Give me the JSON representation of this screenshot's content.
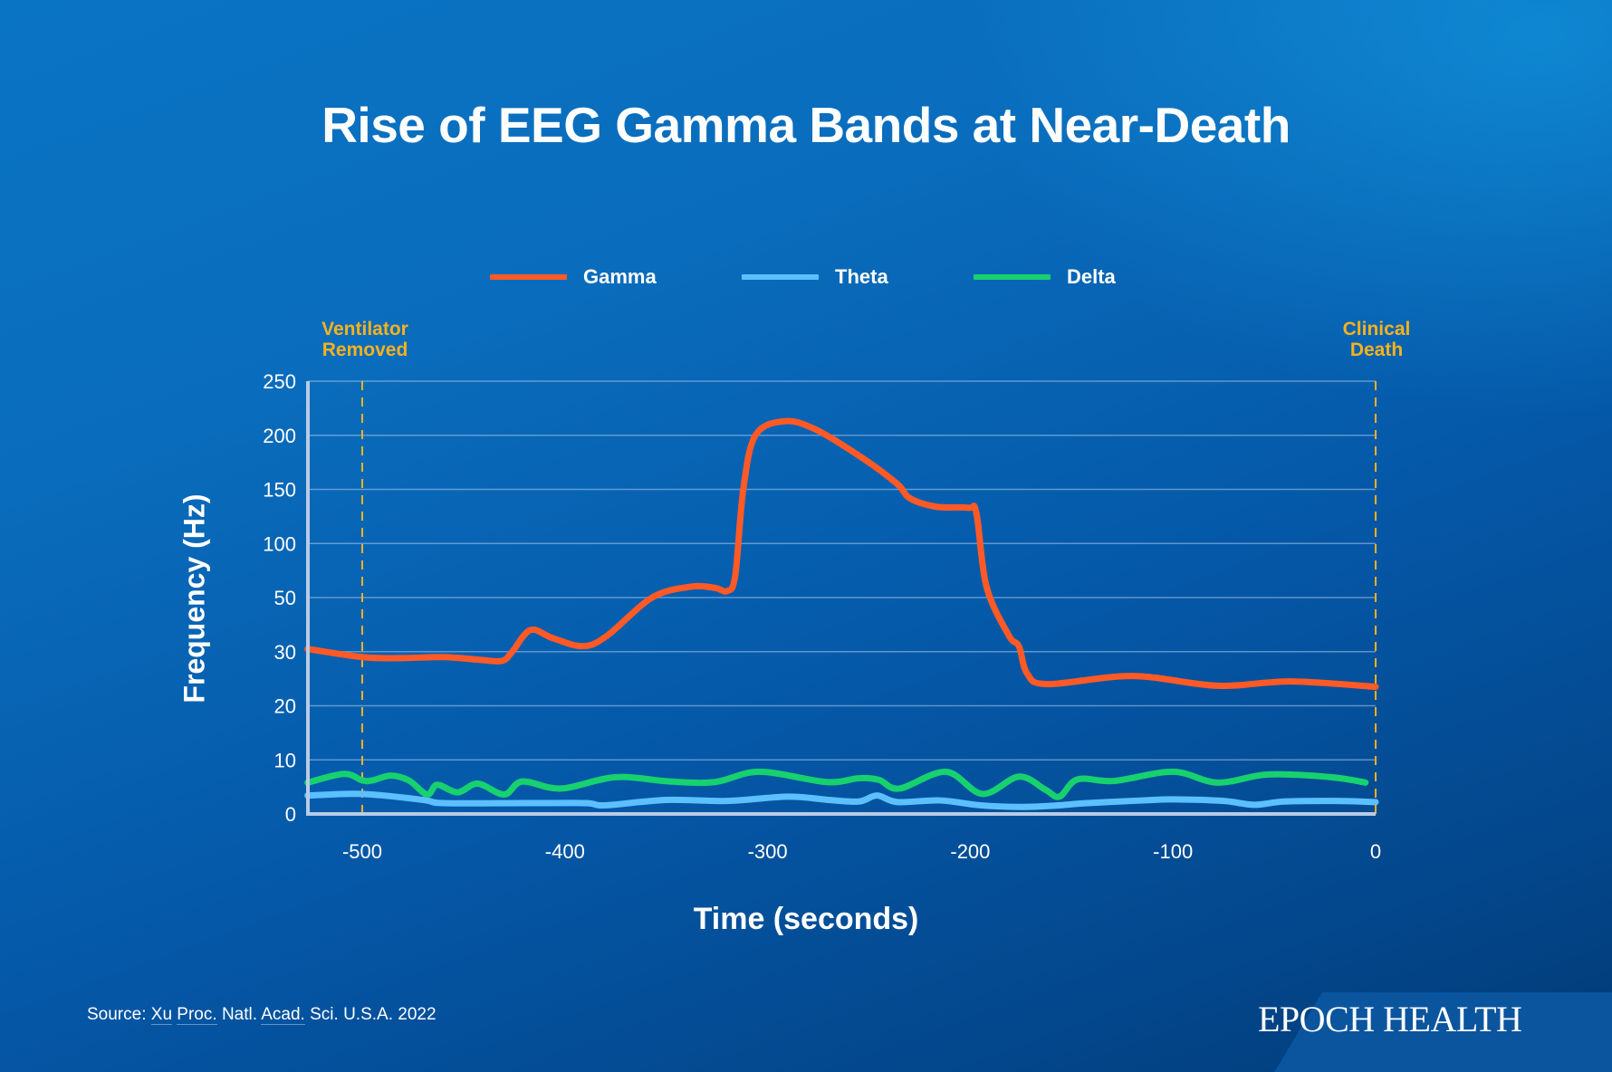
{
  "title": "Rise of EEG Gamma Bands at Near-Death",
  "legend": [
    {
      "label": "Gamma",
      "color": "#ff5a26"
    },
    {
      "label": "Theta",
      "color": "#5cc0ff"
    },
    {
      "label": "Delta",
      "color": "#17d16f"
    }
  ],
  "annotations": {
    "ventilator": {
      "line1": "Ventilator",
      "line2": "Removed",
      "x": -500
    },
    "death": {
      "line1": "Clinical",
      "line2": "Death",
      "x": 0
    },
    "color": "#f7b21e"
  },
  "source": {
    "prefix": "Source: ",
    "parts": [
      "Xu",
      "Proc.",
      "Natl.",
      "Acad.",
      "Sci. U.S.A. 2022"
    ]
  },
  "brand": "EPOCH HEALTH",
  "chart_data": {
    "type": "line",
    "title": "Rise of EEG Gamma Bands at Near-Death",
    "xlabel": "Time (seconds)",
    "ylabel": "Frequency (Hz)",
    "xlim": [
      -527,
      0
    ],
    "xticks": [
      -500,
      -400,
      -300,
      -200,
      -100,
      0
    ],
    "yticks": [
      0,
      10,
      20,
      30,
      50,
      100,
      150,
      200,
      250
    ],
    "y_scale": "piecewise (tick labels equally spaced)",
    "grid": true,
    "legend_position": "top-center",
    "vlines": [
      {
        "x": -500,
        "label": "Ventilator Removed"
      },
      {
        "x": 0,
        "label": "Clinical Death"
      }
    ],
    "series": [
      {
        "name": "Gamma",
        "color": "#ff5a26",
        "points": [
          [
            -527,
            31
          ],
          [
            -500,
            29
          ],
          [
            -482,
            28.8
          ],
          [
            -460,
            29
          ],
          [
            -442,
            28.5
          ],
          [
            -431,
            28.3
          ],
          [
            -426,
            30
          ],
          [
            -417,
            38
          ],
          [
            -406,
            35
          ],
          [
            -391,
            32
          ],
          [
            -379,
            36
          ],
          [
            -357,
            50
          ],
          [
            -338,
            60
          ],
          [
            -326,
            59
          ],
          [
            -320,
            56
          ],
          [
            -316,
            70
          ],
          [
            -312,
            150
          ],
          [
            -306,
            200
          ],
          [
            -292,
            213
          ],
          [
            -277,
            206
          ],
          [
            -254,
            180
          ],
          [
            -236,
            155
          ],
          [
            -230,
            142
          ],
          [
            -217,
            134
          ],
          [
            -201,
            133
          ],
          [
            -197,
            128
          ],
          [
            -192,
            60
          ],
          [
            -181,
            36
          ],
          [
            -176,
            32
          ],
          [
            -172,
            26
          ],
          [
            -162,
            24
          ],
          [
            -120,
            25.5
          ],
          [
            -78,
            23.7
          ],
          [
            -42,
            24.5
          ],
          [
            0,
            23.5
          ]
        ]
      },
      {
        "name": "Theta",
        "color": "#5cc0ff",
        "points": [
          [
            -527,
            3.4
          ],
          [
            -500,
            3.7
          ],
          [
            -470,
            2.6
          ],
          [
            -460,
            2.0
          ],
          [
            -420,
            2.0
          ],
          [
            -390,
            2.0
          ],
          [
            -380,
            1.6
          ],
          [
            -350,
            2.6
          ],
          [
            -320,
            2.4
          ],
          [
            -290,
            3.2
          ],
          [
            -270,
            2.6
          ],
          [
            -255,
            2.3
          ],
          [
            -246,
            3.4
          ],
          [
            -236,
            2.2
          ],
          [
            -215,
            2.5
          ],
          [
            -195,
            1.6
          ],
          [
            -175,
            1.3
          ],
          [
            -160,
            1.5
          ],
          [
            -142,
            2.0
          ],
          [
            -115,
            2.5
          ],
          [
            -100,
            2.7
          ],
          [
            -75,
            2.4
          ],
          [
            -60,
            1.7
          ],
          [
            -45,
            2.3
          ],
          [
            -20,
            2.4
          ],
          [
            0,
            2.2
          ]
        ]
      },
      {
        "name": "Delta",
        "color": "#17d16f",
        "points": [
          [
            -527,
            5.8
          ],
          [
            -509,
            7.4
          ],
          [
            -500,
            6.2
          ],
          [
            -495,
            6.2
          ],
          [
            -486,
            7.1
          ],
          [
            -477,
            6.2
          ],
          [
            -468,
            3.6
          ],
          [
            -463,
            5.4
          ],
          [
            -453,
            4.0
          ],
          [
            -443,
            5.6
          ],
          [
            -430,
            3.6
          ],
          [
            -421,
            6.0
          ],
          [
            -402,
            4.7
          ],
          [
            -375,
            6.8
          ],
          [
            -348,
            6.0
          ],
          [
            -326,
            5.9
          ],
          [
            -304,
            7.8
          ],
          [
            -271,
            5.9
          ],
          [
            -255,
            6.6
          ],
          [
            -245,
            6.3
          ],
          [
            -235,
            4.7
          ],
          [
            -212,
            7.8
          ],
          [
            -194,
            3.7
          ],
          [
            -176,
            6.9
          ],
          [
            -163,
            4.5
          ],
          [
            -156,
            3.2
          ],
          [
            -147,
            6.4
          ],
          [
            -129,
            6.1
          ],
          [
            -100,
            7.8
          ],
          [
            -78,
            5.8
          ],
          [
            -53,
            7.3
          ],
          [
            -22,
            6.8
          ],
          [
            -5,
            5.8
          ]
        ]
      }
    ]
  }
}
